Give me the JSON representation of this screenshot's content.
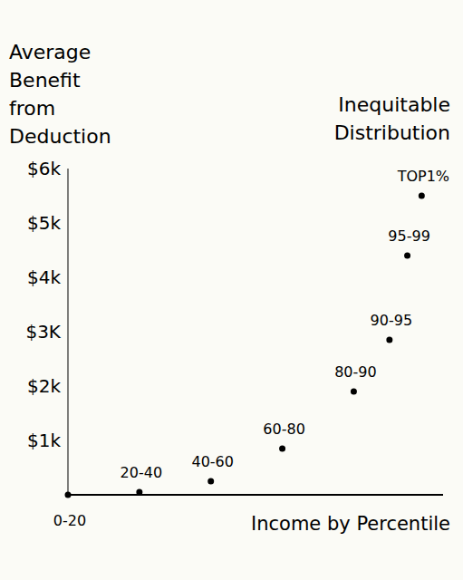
{
  "chart_data": {
    "type": "scatter",
    "title": "Inequitable Distribution",
    "y_label": "Average Benefit from Deduction",
    "x_label": "Income by Percentile",
    "x": [
      0,
      20,
      40,
      60,
      80,
      90,
      95,
      99
    ],
    "values": [
      0,
      50,
      250,
      850,
      1900,
      2850,
      4400,
      5500
    ],
    "labels": [
      "0-20",
      "20-40",
      "40-60",
      "60-80",
      "80-90",
      "90-95",
      "95-99",
      "TOP1%"
    ],
    "color": "#000000",
    "marker": "circle",
    "xlim": [
      0,
      105
    ],
    "ylim": [
      0,
      6000
    ],
    "yticks": [
      {
        "value": 1000,
        "label": "$1k"
      },
      {
        "value": 2000,
        "label": "$2k"
      },
      {
        "value": 3000,
        "label": "$3K"
      },
      {
        "value": 4000,
        "label": "$4k"
      },
      {
        "value": 5000,
        "label": "$5k"
      },
      {
        "value": 6000,
        "label": "$6k"
      }
    ],
    "tick_labels": "y",
    "grid": false
  }
}
